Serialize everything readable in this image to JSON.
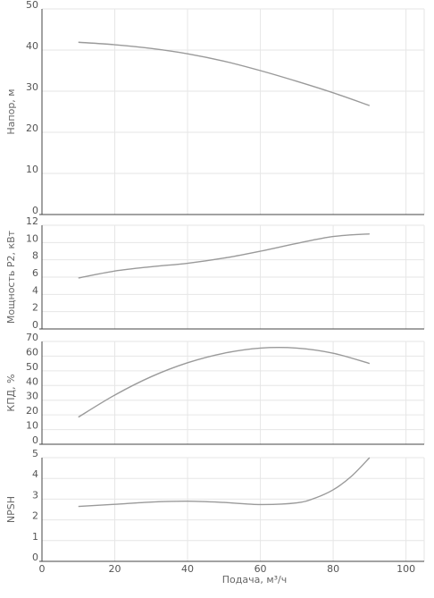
{
  "chart_data": [
    {
      "type": "line",
      "ylabel": "Напор, м",
      "xlabel": "",
      "xlim": [
        0,
        105
      ],
      "ylim": [
        0,
        50
      ],
      "yticks": [
        0,
        10,
        20,
        30,
        40,
        50
      ],
      "xticks": [],
      "grid": true,
      "series": [
        {
          "x": [
            10,
            20,
            30,
            40,
            50,
            60,
            70,
            80,
            90
          ],
          "y": [
            41.9,
            41.3,
            40.4,
            39.1,
            37.3,
            35.0,
            32.4,
            29.6,
            26.5
          ]
        }
      ]
    },
    {
      "type": "line",
      "ylabel": "Мощность P2, кВт",
      "xlabel": "",
      "xlim": [
        0,
        105
      ],
      "ylim": [
        0,
        12
      ],
      "yticks": [
        0,
        2,
        4,
        6,
        8,
        10,
        12
      ],
      "xticks": [],
      "grid": true,
      "series": [
        {
          "x": [
            10,
            20,
            30,
            40,
            50,
            60,
            70,
            80,
            90
          ],
          "y": [
            5.9,
            6.7,
            7.2,
            7.6,
            8.2,
            9.0,
            9.9,
            10.7,
            11.0
          ]
        }
      ]
    },
    {
      "type": "line",
      "ylabel": "КПД, %",
      "xlabel": "",
      "xlim": [
        0,
        105
      ],
      "ylim": [
        0,
        70
      ],
      "yticks": [
        0,
        10,
        20,
        30,
        40,
        50,
        60,
        70
      ],
      "xticks": [],
      "grid": true,
      "series": [
        {
          "x": [
            10,
            20,
            30,
            40,
            50,
            60,
            70,
            80,
            90
          ],
          "y": [
            18.5,
            33.5,
            46.0,
            55.5,
            62.0,
            65.5,
            65.5,
            62.0,
            55.0
          ]
        }
      ]
    },
    {
      "type": "line",
      "ylabel": "NPSH",
      "xlabel": "Подача, м³/ч",
      "xlim": [
        0,
        105
      ],
      "ylim": [
        0,
        5
      ],
      "yticks": [
        0,
        1,
        2,
        3,
        4,
        5
      ],
      "xticks": [
        0,
        20,
        40,
        60,
        80,
        100
      ],
      "grid": true,
      "series": [
        {
          "x": [
            10,
            20,
            30,
            40,
            50,
            60,
            70,
            75,
            80,
            85,
            90
          ],
          "y": [
            2.65,
            2.75,
            2.86,
            2.9,
            2.84,
            2.74,
            2.82,
            3.05,
            3.45,
            4.1,
            5.0
          ]
        }
      ]
    }
  ]
}
